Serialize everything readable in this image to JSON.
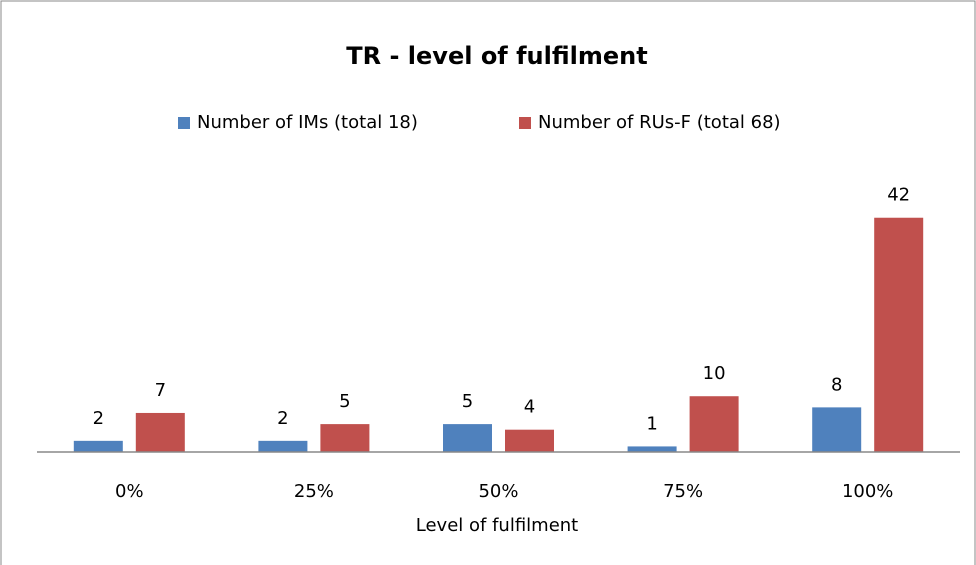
{
  "chart_data": {
    "type": "bar",
    "title": "TR - level of fulfilment",
    "x_label": "Level of fulfilment",
    "categories": [
      "0%",
      "25%",
      "50%",
      "75%",
      "100%"
    ],
    "series": [
      {
        "name": "Number of IMs (total 18)",
        "color": "#4f81bd",
        "values": [
          2,
          2,
          5,
          1,
          8
        ]
      },
      {
        "name": "Number of RUs-F (total 68)",
        "color": "#c0504d",
        "values": [
          7,
          5,
          4,
          10,
          42
        ]
      }
    ],
    "ylim": [
      0,
      45
    ],
    "legend": "top"
  }
}
